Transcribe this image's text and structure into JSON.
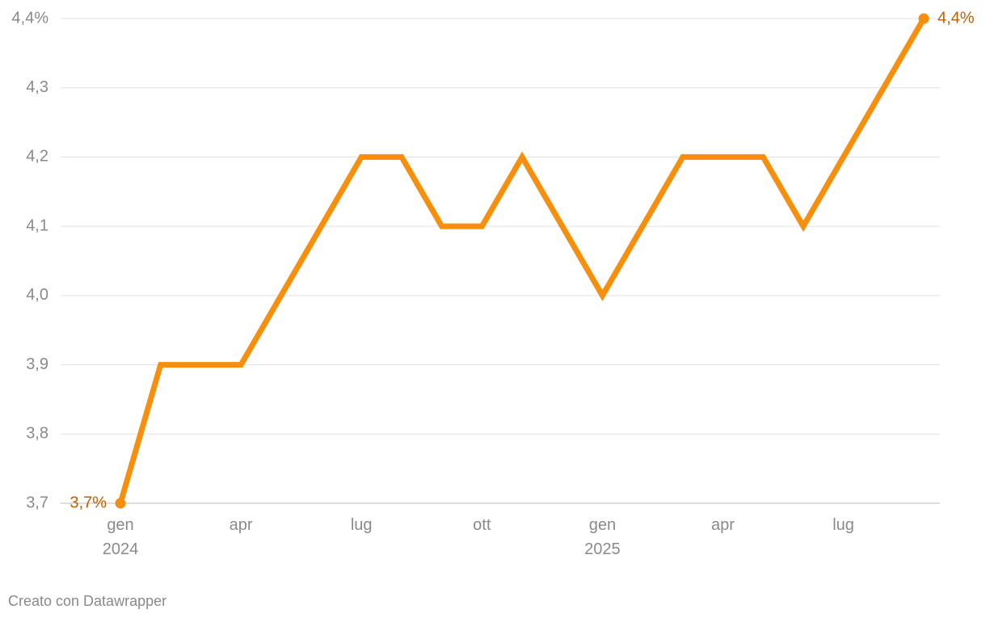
{
  "chart_data": {
    "type": "line",
    "categories": [
      "gen\n2024",
      null,
      null,
      "apr",
      null,
      null,
      "lug",
      null,
      null,
      "ott",
      null,
      null,
      "gen\n2025",
      null,
      null,
      "apr",
      null,
      null,
      "lug",
      null,
      null
    ],
    "series": [
      {
        "color": "#f78e0c",
        "values": [
          3.7,
          3.9,
          3.9,
          3.9,
          4.0,
          4.1,
          4.2,
          4.2,
          4.1,
          4.1,
          4.2,
          4.1,
          4.0,
          4.1,
          4.2,
          4.2,
          4.2,
          4.1,
          4.2,
          4.3,
          4.4
        ],
        "value_labels": [
          "3,7%",
          null,
          null,
          null,
          null,
          null,
          null,
          null,
          null,
          null,
          null,
          null,
          null,
          null,
          null,
          null,
          null,
          null,
          null,
          null,
          "4,4%"
        ]
      }
    ],
    "ylim": [
      3.7,
      4.4
    ],
    "yticks": [
      {
        "value": 3.7,
        "label": "3,7"
      },
      {
        "value": 3.8,
        "label": "3,8"
      },
      {
        "value": 3.9,
        "label": "3,9"
      },
      {
        "value": 4.0,
        "label": "4,0"
      },
      {
        "value": 4.1,
        "label": "4,1"
      },
      {
        "value": 4.2,
        "label": "4,2"
      },
      {
        "value": 4.3,
        "label": "4,3"
      },
      {
        "value": 4.4,
        "label": "4,4%"
      }
    ],
    "grid": true,
    "source": "Creato con Datawrapper"
  }
}
